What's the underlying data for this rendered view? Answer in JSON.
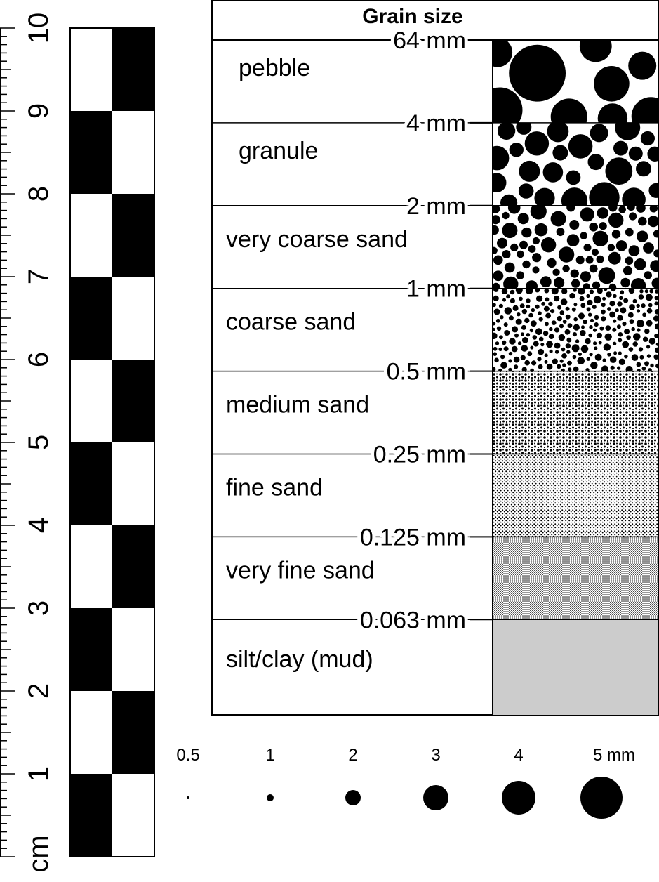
{
  "ruler": {
    "labels": [
      "1",
      "2",
      "3",
      "4",
      "5",
      "6",
      "7",
      "8",
      "9",
      "10"
    ],
    "unit": "cm"
  },
  "title": "Grain size",
  "boundaries": [
    "64 mm",
    "4 mm",
    "2 mm",
    "1 mm",
    "0.5 mm",
    "0.25 mm",
    "0.125 mm",
    "0.063 mm"
  ],
  "classes": [
    "pebble",
    "granule",
    "very coarse sand",
    "coarse sand",
    "medium sand",
    "fine sand",
    "very fine sand",
    "silt/clay (mud)"
  ],
  "scale": [
    "0.5",
    "1",
    "2",
    "3",
    "4",
    "5 mm"
  ]
}
